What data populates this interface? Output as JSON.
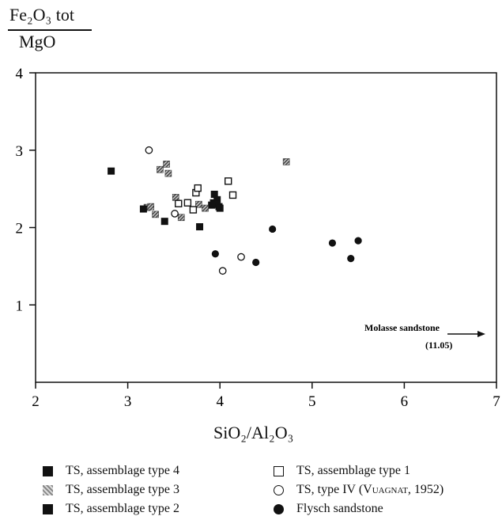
{
  "chart_data": {
    "type": "scatter",
    "y_label": {
      "numerator": "Fe₂O₃ tot",
      "denominator": "MgO"
    },
    "x_label": "SiO₂/Al₂O₃",
    "xlim": [
      2,
      7
    ],
    "ylim": [
      0,
      4
    ],
    "x_ticks": [
      "2",
      "3",
      "4",
      "5",
      "6",
      "7"
    ],
    "y_ticks": [
      "1",
      "2",
      "3",
      "4"
    ],
    "annotation": {
      "text": "Molasse sandstone",
      "value": "(11.05)"
    },
    "series": [
      {
        "name": "TS, assemblage type 4",
        "marker": "filled-square",
        "color": "#111111",
        "points": [
          [
            3.94,
            2.43
          ],
          [
            3.97,
            2.36
          ],
          [
            3.93,
            2.32
          ],
          [
            3.96,
            2.3
          ],
          [
            3.99,
            2.27
          ],
          [
            3.91,
            2.29
          ]
        ]
      },
      {
        "name": "TS, assemblage type 3",
        "marker": "hatched-square",
        "color": "#555555",
        "points": [
          [
            3.21,
            2.26
          ],
          [
            3.25,
            2.27
          ],
          [
            3.3,
            2.17
          ],
          [
            3.35,
            2.75
          ],
          [
            3.42,
            2.82
          ],
          [
            3.44,
            2.7
          ],
          [
            3.52,
            2.39
          ],
          [
            3.58,
            2.13
          ],
          [
            3.77,
            2.3
          ],
          [
            3.84,
            2.25
          ],
          [
            4.72,
            2.85
          ]
        ]
      },
      {
        "name": "TS, assemblage type 2",
        "marker": "filled-square",
        "color": "#111111",
        "points": [
          [
            2.82,
            2.73
          ],
          [
            3.17,
            2.24
          ],
          [
            3.4,
            2.08
          ],
          [
            3.78,
            2.01
          ],
          [
            4.0,
            2.25
          ]
        ]
      },
      {
        "name": "TS, assemblage type 1",
        "marker": "open-square",
        "color": "#111111",
        "points": [
          [
            3.55,
            2.31
          ],
          [
            3.65,
            2.32
          ],
          [
            3.71,
            2.23
          ],
          [
            3.74,
            2.45
          ],
          [
            3.76,
            2.51
          ],
          [
            4.09,
            2.6
          ],
          [
            4.14,
            2.42
          ]
        ]
      },
      {
        "name": "TS, type IV (Vuagnat, 1952)",
        "marker": "open-circle",
        "color": "#111111",
        "points": [
          [
            3.23,
            3.0
          ],
          [
            3.51,
            2.18
          ],
          [
            4.03,
            1.44
          ],
          [
            4.23,
            1.62
          ]
        ]
      },
      {
        "name": "Flysch sandstone",
        "marker": "filled-circle",
        "color": "#111111",
        "points": [
          [
            3.95,
            1.66
          ],
          [
            4.39,
            1.55
          ],
          [
            4.57,
            1.98
          ],
          [
            5.22,
            1.8
          ],
          [
            5.42,
            1.6
          ],
          [
            5.5,
            1.83
          ]
        ]
      }
    ]
  },
  "legend": {
    "col1": [
      "TS, assemblage type 4",
      "TS, assemblage type 3",
      "TS, assemblage type 2"
    ],
    "col2_1": "TS, assemblage type 1",
    "col2_2_prefix": "TS, type IV (",
    "col2_2_author": "Vuagnat",
    "col2_2_suffix": ", 1952)",
    "col2_3": "Flysch sandstone"
  }
}
